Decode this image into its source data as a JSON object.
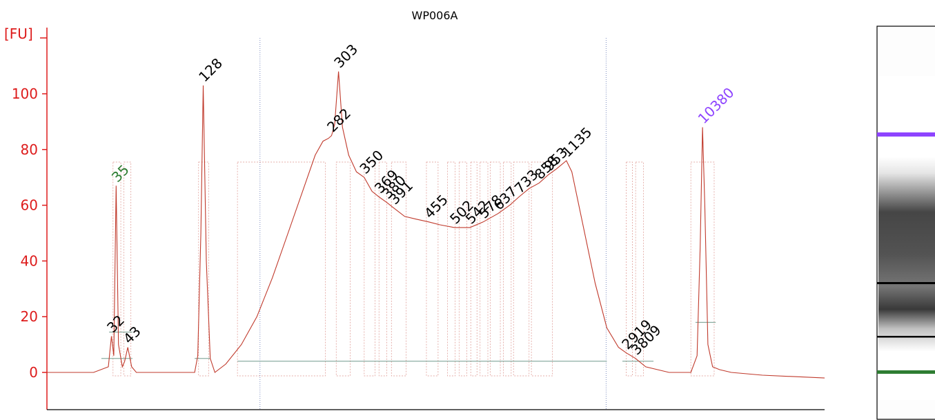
{
  "sample": {
    "title": "WP006A"
  },
  "colors": {
    "axis": "#dd1b1b",
    "trace": "#c0392b",
    "baseline": "#5b8a7a",
    "marker": "#2e7d32",
    "upper_marker": "#8e44ff",
    "label": "#000000",
    "gridline": "#5a6fb0"
  },
  "chart_data": {
    "type": "line",
    "title": "WP006A",
    "ylabel": "[FU]",
    "xlabel": "",
    "ylim": [
      -13,
      125
    ],
    "yticks": [
      0,
      20,
      40,
      60,
      80,
      100
    ],
    "x_axis": "migration position (0–1)",
    "peak_labels": [
      {
        "text": "35",
        "x": 0.089,
        "y": 67,
        "color": "marker"
      },
      {
        "text": "32",
        "x": 0.083,
        "y": 13,
        "color": "label"
      },
      {
        "text": "43",
        "x": 0.104,
        "y": 9,
        "color": "label"
      },
      {
        "text": "128",
        "x": 0.201,
        "y": 103,
        "color": "label"
      },
      {
        "text": "282",
        "x": 0.366,
        "y": 85,
        "color": "label"
      },
      {
        "text": "303",
        "x": 0.375,
        "y": 108,
        "color": "label"
      },
      {
        "text": "350",
        "x": 0.408,
        "y": 70,
        "color": "label"
      },
      {
        "text": "369",
        "x": 0.427,
        "y": 63,
        "color": "label"
      },
      {
        "text": "380",
        "x": 0.437,
        "y": 61,
        "color": "label"
      },
      {
        "text": "391",
        "x": 0.446,
        "y": 59,
        "color": "label"
      },
      {
        "text": "455",
        "x": 0.491,
        "y": 54,
        "color": "label"
      },
      {
        "text": "502",
        "x": 0.524,
        "y": 52,
        "color": "label"
      },
      {
        "text": "542",
        "x": 0.544,
        "y": 52,
        "color": "label"
      },
      {
        "text": "578",
        "x": 0.561,
        "y": 54,
        "color": "label"
      },
      {
        "text": "637",
        "x": 0.58,
        "y": 57,
        "color": "label"
      },
      {
        "text": "733",
        "x": 0.607,
        "y": 63,
        "color": "label"
      },
      {
        "text": "858",
        "x": 0.633,
        "y": 68,
        "color": "label"
      },
      {
        "text": "953",
        "x": 0.645,
        "y": 71,
        "color": "label"
      },
      {
        "text": "1135",
        "x": 0.668,
        "y": 76,
        "color": "label"
      },
      {
        "text": "2919",
        "x": 0.745,
        "y": 7,
        "color": "label"
      },
      {
        "text": "3809",
        "x": 0.757,
        "y": 5,
        "color": "label"
      },
      {
        "text": "10380",
        "x": 0.843,
        "y": 88,
        "color": "upper_marker"
      }
    ],
    "trace": {
      "x": [
        0,
        0.06,
        0.079,
        0.083,
        0.086,
        0.089,
        0.092,
        0.097,
        0.1,
        0.104,
        0.109,
        0.115,
        0.14,
        0.19,
        0.194,
        0.198,
        0.201,
        0.205,
        0.21,
        0.216,
        0.23,
        0.25,
        0.27,
        0.29,
        0.31,
        0.33,
        0.345,
        0.355,
        0.362,
        0.366,
        0.37,
        0.375,
        0.38,
        0.388,
        0.398,
        0.408,
        0.418,
        0.427,
        0.437,
        0.446,
        0.46,
        0.475,
        0.491,
        0.505,
        0.524,
        0.544,
        0.561,
        0.58,
        0.595,
        0.607,
        0.62,
        0.633,
        0.645,
        0.655,
        0.668,
        0.675,
        0.69,
        0.705,
        0.72,
        0.735,
        0.745,
        0.757,
        0.77,
        0.8,
        0.828,
        0.836,
        0.84,
        0.843,
        0.846,
        0.85,
        0.856,
        0.865,
        0.88,
        0.92,
        1.0
      ],
      "y": [
        0,
        0,
        2,
        13,
        6,
        67,
        10,
        2,
        4,
        9,
        2,
        0,
        0,
        0,
        6,
        50,
        103,
        40,
        5,
        0,
        3,
        10,
        20,
        34,
        50,
        66,
        78,
        83,
        84,
        85,
        89,
        108,
        88,
        78,
        72,
        70,
        65,
        63,
        61,
        59,
        56,
        55,
        54,
        53,
        52,
        52,
        54,
        57,
        60,
        63,
        66,
        68,
        71,
        73,
        76,
        72,
        52,
        32,
        16,
        9,
        7,
        5,
        2,
        0,
        0,
        6,
        45,
        88,
        60,
        10,
        2,
        1,
        0,
        -1,
        -2
      ]
    }
  }
}
